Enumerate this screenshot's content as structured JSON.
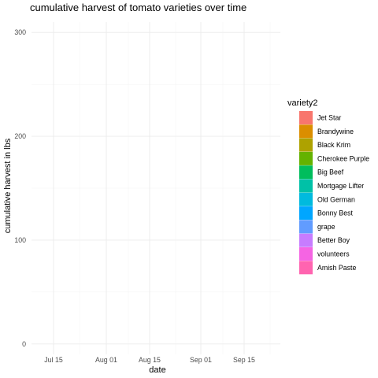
{
  "chart_data": {
    "type": "area",
    "title": "cumulative harvest of tomato varieties over time",
    "xlabel": "date",
    "ylabel": "cumulative harvest in lbs",
    "x_ticks": [
      "Jul 15",
      "Aug 01",
      "Aug 15",
      "Sep 01",
      "Sep 15"
    ],
    "y_ticks": [
      0,
      100,
      200,
      300
    ],
    "ylim": [
      -10,
      310
    ],
    "grid": true,
    "legend": {
      "title": "variety2",
      "position": "right",
      "entries": [
        {
          "name": "Jet Star",
          "color": "#F8766D"
        },
        {
          "name": "Brandywine",
          "color": "#DB8E00"
        },
        {
          "name": "Black Krim",
          "color": "#AEA200"
        },
        {
          "name": "Cherokee Purple",
          "color": "#64B200"
        },
        {
          "name": "Big Beef",
          "color": "#00BD5C"
        },
        {
          "name": "Mortgage Lifter",
          "color": "#00C1A7"
        },
        {
          "name": "Old German",
          "color": "#00BADE"
        },
        {
          "name": "Bonny Best",
          "color": "#00A6FF"
        },
        {
          "name": "grape",
          "color": "#619CFF"
        },
        {
          "name": "Better Boy",
          "color": "#C77CFF"
        },
        {
          "name": "volunteers",
          "color": "#F564E3"
        },
        {
          "name": "Amish Paste",
          "color": "#FF64B0"
        }
      ]
    },
    "series": []
  }
}
